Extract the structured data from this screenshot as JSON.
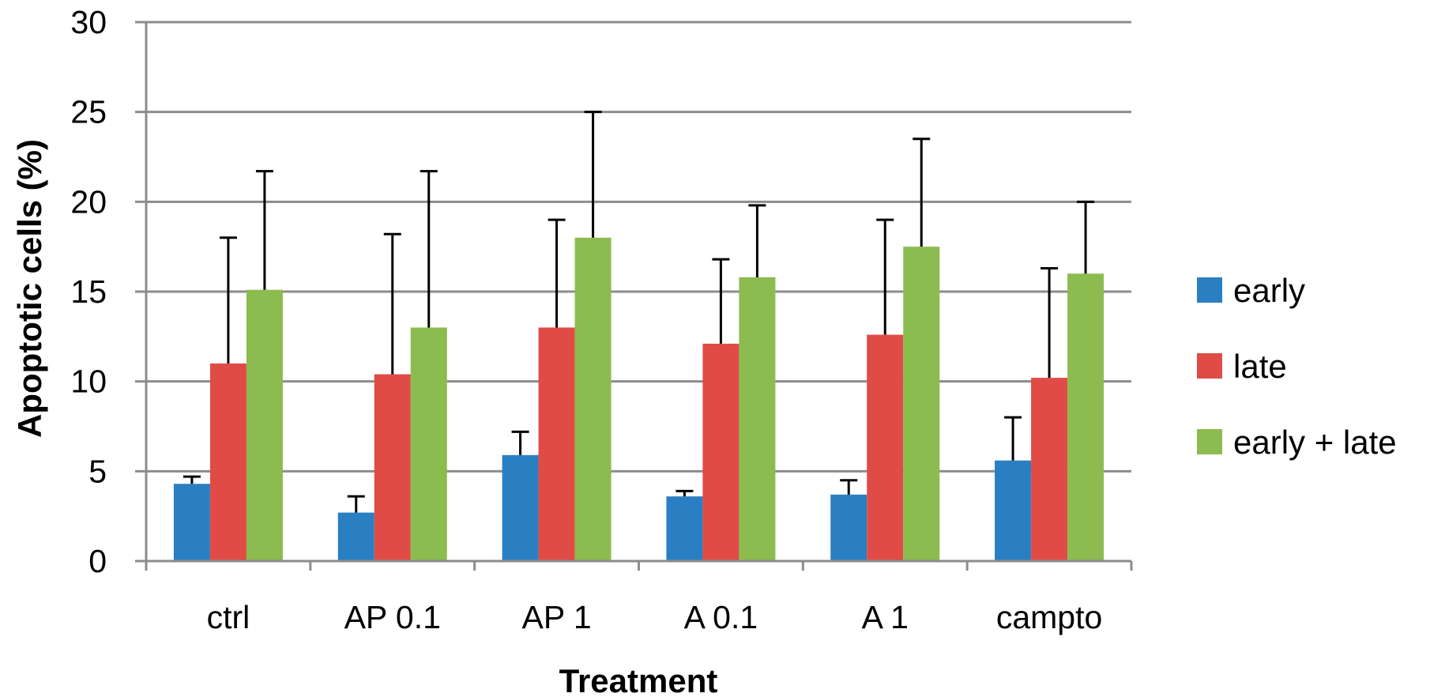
{
  "chart_data": {
    "type": "bar",
    "categories": [
      "ctrl",
      "AP 0.1",
      "AP 1",
      "A 0.1",
      "A 1",
      "campto"
    ],
    "series": [
      {
        "name": "early",
        "color": "#2a7fc2",
        "values": [
          4.3,
          2.7,
          5.9,
          3.6,
          3.7,
          5.6
        ],
        "error_upper": [
          4.7,
          3.6,
          7.2,
          3.9,
          4.5,
          8.0
        ]
      },
      {
        "name": "late",
        "color": "#e04b46",
        "values": [
          11.0,
          10.4,
          13.0,
          12.1,
          12.6,
          10.2
        ],
        "error_upper": [
          18.0,
          18.2,
          19.0,
          16.8,
          19.0,
          16.3
        ]
      },
      {
        "name": "early + late",
        "color": "#8cbb4f",
        "values": [
          15.1,
          13.0,
          18.0,
          15.8,
          17.5,
          16.0
        ],
        "error_upper": [
          21.7,
          21.7,
          25.0,
          19.8,
          23.5,
          20.0
        ]
      }
    ],
    "xlabel": "Treatment",
    "ylabel": "Apoptotic cells (%)",
    "ylim": [
      0,
      30
    ],
    "yticks": [
      0,
      5,
      10,
      15,
      20,
      25,
      30
    ],
    "grid": true,
    "legend_position": "right"
  }
}
